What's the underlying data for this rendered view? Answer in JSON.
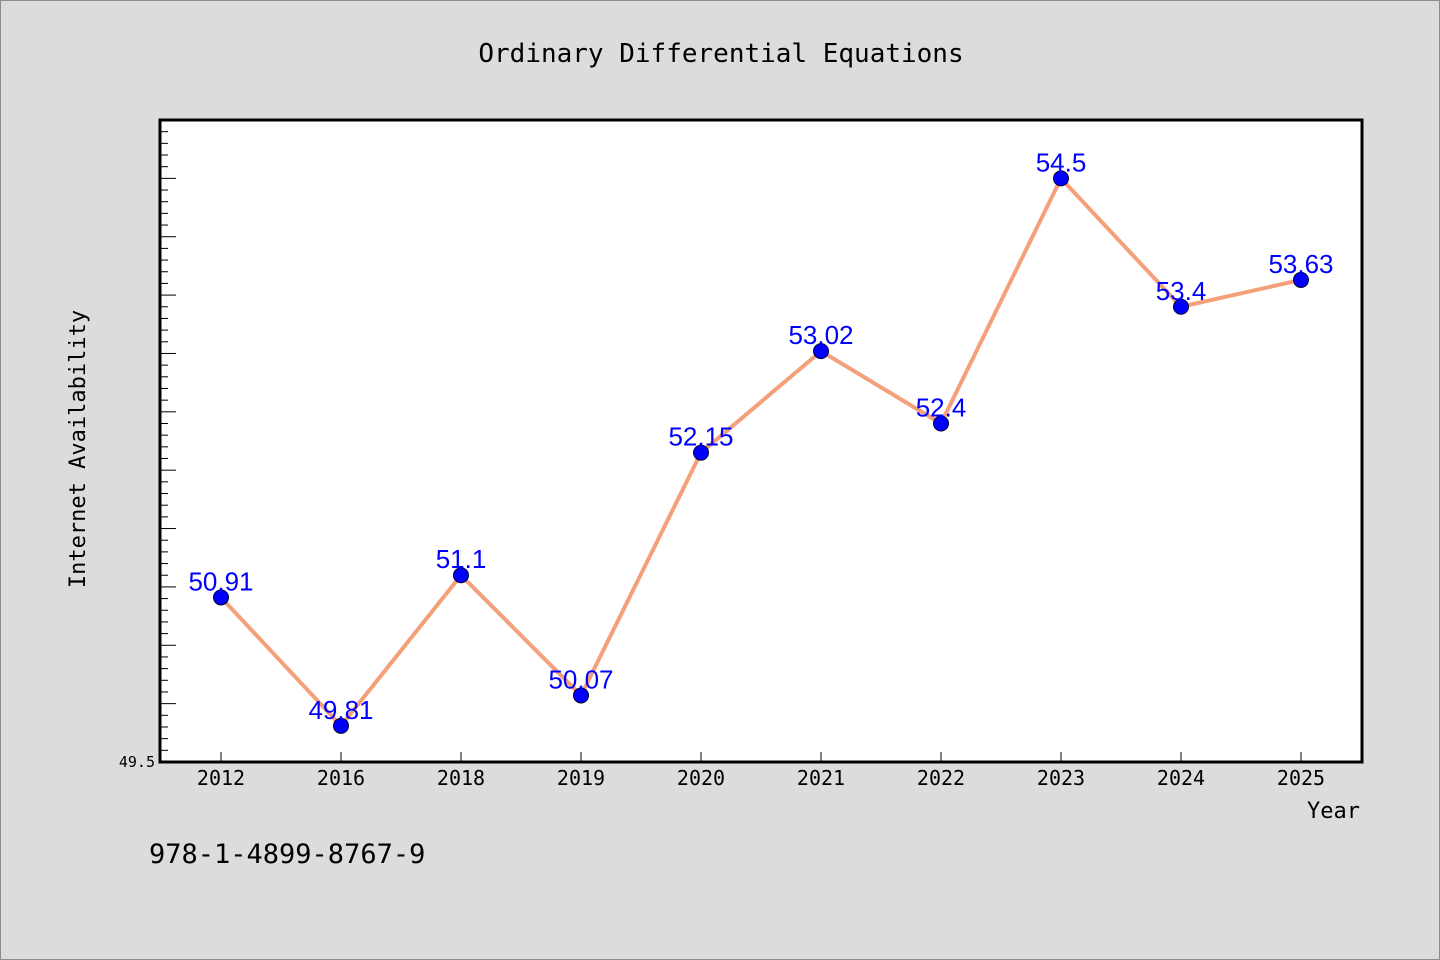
{
  "chart_data": {
    "type": "line",
    "title": "Ordinary Differential Equations",
    "xlabel": "Year",
    "ylabel": "Internet Availability",
    "categories": [
      "2012",
      "2016",
      "2018",
      "2019",
      "2020",
      "2021",
      "2022",
      "2023",
      "2024",
      "2025"
    ],
    "series": [
      {
        "values": [
          50.91,
          49.81,
          51.1,
          50.07,
          52.15,
          53.02,
          52.4,
          54.5,
          53.4,
          53.63
        ],
        "data_labels": [
          "50.91",
          "49.81",
          "51.1",
          "50.07",
          "52.15",
          "53.02",
          "52.4",
          "54.5",
          "53.4",
          "53.63"
        ]
      }
    ],
    "ylim": [
      49.5,
      55
    ],
    "y_tick_labels": [
      "49.5"
    ],
    "grid": false,
    "legend": "none",
    "colors": {
      "line": "#f4a07a",
      "marker": "#0000ff",
      "label": "#0000ff",
      "background": "#dcdcdc",
      "plot_background": "#ffffff",
      "frame": "#000000"
    }
  },
  "footer_text": "978-1-4899-8767-9"
}
